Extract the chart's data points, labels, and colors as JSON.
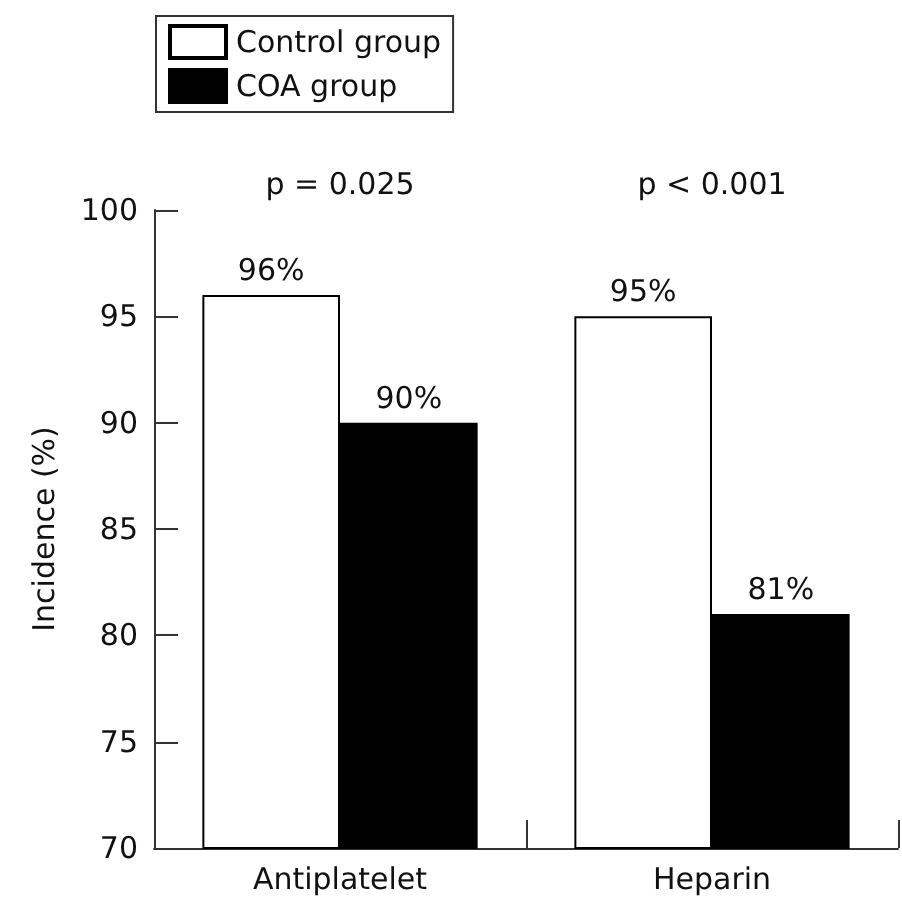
{
  "chart_data": {
    "type": "bar",
    "ylabel": "Incidence (%)",
    "categories": [
      "Antiplatelet",
      "Heparin"
    ],
    "series": [
      {
        "name": "Control group",
        "color": "#ffffff",
        "values": [
          96,
          95
        ],
        "value_labels": [
          "96%",
          "95%"
        ]
      },
      {
        "name": "COA group",
        "color": "#000000",
        "values": [
          90,
          81
        ],
        "value_labels": [
          "90%",
          "81%"
        ]
      }
    ],
    "ylim": [
      70,
      100
    ],
    "yticks": [
      70,
      75,
      80,
      85,
      90,
      95,
      100
    ],
    "grid": false,
    "legend": "top left",
    "annotations": [
      "p = 0.025",
      "p < 0.001"
    ]
  }
}
